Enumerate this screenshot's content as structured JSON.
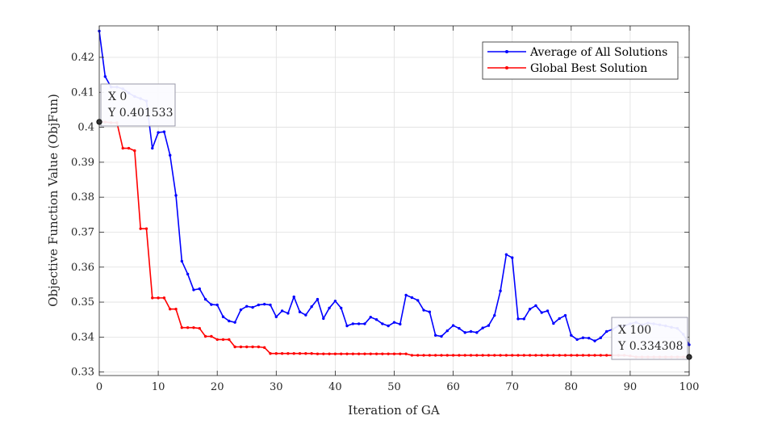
{
  "chart_data": {
    "type": "line",
    "xlabel": "Iteration of GA",
    "ylabel": "Objective Function Value (ObjFun)",
    "xlim": [
      0,
      100
    ],
    "ylim": [
      0.329,
      0.429
    ],
    "xticks": [
      0,
      10,
      20,
      30,
      40,
      50,
      60,
      70,
      80,
      90,
      100
    ],
    "yticks": [
      0.33,
      0.34,
      0.35,
      0.36,
      0.37,
      0.38,
      0.39,
      0.4,
      0.41,
      0.42
    ],
    "ytick_labels": [
      "0.33",
      "0.34",
      "0.35",
      "0.36",
      "0.37",
      "0.38",
      "0.39",
      "0.4",
      "0.41",
      "0.42"
    ],
    "grid": true,
    "legend_position": "top-right",
    "series": [
      {
        "name": "Average of All Solutions",
        "color": "#0000ff",
        "x": [
          0,
          1,
          2,
          3,
          4,
          5,
          6,
          7,
          8,
          9,
          10,
          11,
          12,
          13,
          14,
          15,
          16,
          17,
          18,
          19,
          20,
          21,
          22,
          23,
          24,
          25,
          26,
          27,
          28,
          29,
          30,
          31,
          32,
          33,
          34,
          35,
          36,
          37,
          38,
          39,
          40,
          41,
          42,
          43,
          44,
          45,
          46,
          47,
          48,
          49,
          50,
          51,
          52,
          53,
          54,
          55,
          56,
          57,
          58,
          59,
          60,
          61,
          62,
          63,
          64,
          65,
          66,
          67,
          68,
          69,
          70,
          71,
          72,
          73,
          74,
          75,
          76,
          77,
          78,
          79,
          80,
          81,
          82,
          83,
          84,
          85,
          86,
          87,
          88,
          89,
          90,
          91,
          92,
          93,
          94,
          95,
          96,
          97,
          98,
          99,
          100
        ],
        "values": [
          0.4275,
          0.4145,
          0.4115,
          0.4115,
          0.411,
          0.4098,
          0.4088,
          0.4082,
          0.4075,
          0.394,
          0.3985,
          0.3987,
          0.392,
          0.3805,
          0.3617,
          0.358,
          0.3535,
          0.3538,
          0.3508,
          0.3493,
          0.3492,
          0.3458,
          0.3446,
          0.3442,
          0.3478,
          0.3488,
          0.3485,
          0.3492,
          0.3494,
          0.3492,
          0.3458,
          0.3475,
          0.3468,
          0.3515,
          0.3472,
          0.3463,
          0.3487,
          0.3508,
          0.3453,
          0.3483,
          0.3503,
          0.3483,
          0.3432,
          0.3438,
          0.3438,
          0.3438,
          0.3457,
          0.345,
          0.3438,
          0.3432,
          0.3442,
          0.3437,
          0.352,
          0.3513,
          0.3505,
          0.3477,
          0.3472,
          0.3405,
          0.3402,
          0.3418,
          0.3433,
          0.3425,
          0.3413,
          0.3416,
          0.3413,
          0.3426,
          0.3433,
          0.3462,
          0.3532,
          0.3636,
          0.3627,
          0.3452,
          0.3452,
          0.348,
          0.349,
          0.347,
          0.3475,
          0.3439,
          0.3453,
          0.3462,
          0.3405,
          0.3393,
          0.3398,
          0.3397,
          0.3389,
          0.3398,
          0.3416,
          0.3422,
          0.3432,
          0.3432,
          0.3438,
          0.3442,
          0.3435,
          0.344,
          0.3438,
          0.3435,
          0.3432,
          0.3428,
          0.3425,
          0.3408,
          0.3378
        ]
      },
      {
        "name": "Global Best Solution",
        "color": "#ff0000",
        "x": [
          0,
          1,
          2,
          3,
          4,
          5,
          6,
          7,
          8,
          9,
          10,
          11,
          12,
          13,
          14,
          15,
          16,
          17,
          18,
          19,
          20,
          21,
          22,
          23,
          24,
          25,
          26,
          27,
          28,
          29,
          30,
          31,
          32,
          33,
          34,
          35,
          36,
          37,
          38,
          39,
          40,
          41,
          42,
          43,
          44,
          45,
          46,
          47,
          48,
          49,
          50,
          51,
          52,
          53,
          54,
          55,
          56,
          57,
          58,
          59,
          60,
          61,
          62,
          63,
          64,
          65,
          66,
          67,
          68,
          69,
          70,
          71,
          72,
          73,
          74,
          75,
          76,
          77,
          78,
          79,
          80,
          81,
          82,
          83,
          84,
          85,
          86,
          87,
          88,
          89,
          90,
          91,
          92,
          93,
          94,
          95,
          96,
          97,
          98,
          99,
          100
        ],
        "values": [
          0.401533,
          0.4015,
          0.4013,
          0.4013,
          0.394,
          0.394,
          0.3933,
          0.371,
          0.371,
          0.3512,
          0.3512,
          0.3512,
          0.348,
          0.348,
          0.3427,
          0.3427,
          0.3427,
          0.3425,
          0.3402,
          0.3402,
          0.3393,
          0.3393,
          0.3393,
          0.3372,
          0.3372,
          0.3372,
          0.3372,
          0.3372,
          0.337,
          0.3353,
          0.3353,
          0.3353,
          0.3353,
          0.3353,
          0.3353,
          0.3353,
          0.3353,
          0.3352,
          0.3352,
          0.3352,
          0.3352,
          0.3352,
          0.3352,
          0.3352,
          0.3352,
          0.3352,
          0.3352,
          0.3352,
          0.3352,
          0.3352,
          0.3352,
          0.3352,
          0.3352,
          0.3348,
          0.3348,
          0.3348,
          0.3348,
          0.3348,
          0.3348,
          0.3348,
          0.3348,
          0.3348,
          0.3348,
          0.3348,
          0.3348,
          0.3348,
          0.3348,
          0.3348,
          0.3348,
          0.3348,
          0.3348,
          0.3348,
          0.3348,
          0.3348,
          0.3348,
          0.3348,
          0.3348,
          0.3348,
          0.3348,
          0.3348,
          0.3348,
          0.3348,
          0.3348,
          0.3348,
          0.3348,
          0.3348,
          0.3348,
          0.3348,
          0.3348,
          0.3348,
          0.3346,
          0.3343,
          0.3343,
          0.3343,
          0.3343,
          0.3343,
          0.3343,
          0.3343,
          0.3343,
          0.3343,
          0.334308
        ]
      }
    ],
    "datatips": [
      {
        "line1": "X 0",
        "line2": "Y 0.401533",
        "x": 0,
        "y": 0.401533
      },
      {
        "line1": "X 100",
        "line2": "Y 0.334308",
        "x": 100,
        "y": 0.334308
      }
    ]
  }
}
